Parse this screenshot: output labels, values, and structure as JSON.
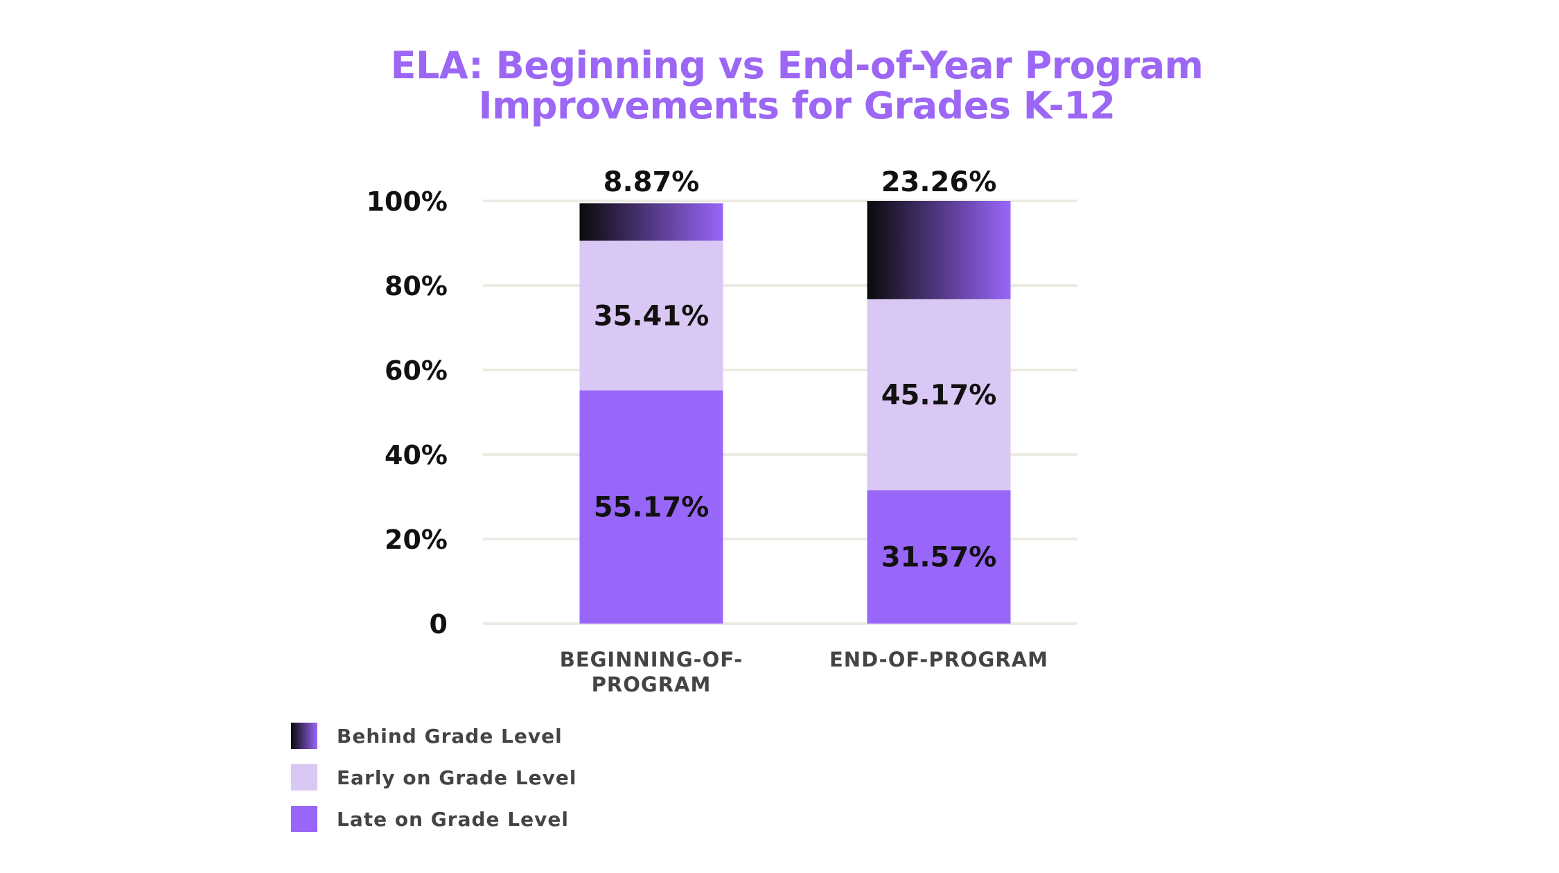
{
  "chart_data": {
    "type": "bar",
    "stacked": true,
    "title_lines": [
      "ELA: Beginning vs End-of-Year Program",
      "Improvements for Grades K-12"
    ],
    "categories": [
      [
        "BEGINNING-OF-",
        "PROGRAM"
      ],
      [
        "END-OF-PROGRAM"
      ]
    ],
    "y_ticks": [
      "0",
      "20%",
      "40%",
      "60%",
      "80%",
      "100%"
    ],
    "ylim": [
      0,
      100
    ],
    "grid": true,
    "legend_position": "bottom-left",
    "series": [
      {
        "name": "Late on Grade Level",
        "values": [
          55.17,
          31.57
        ],
        "labels": [
          "55.17%",
          "31.57%"
        ],
        "color": "#9966fa"
      },
      {
        "name": "Early on Grade Level",
        "values": [
          35.41,
          45.17
        ],
        "labels": [
          "35.41%",
          "45.17%"
        ],
        "color": "#dac8f4"
      },
      {
        "name": "Behind Grade Level",
        "values": [
          8.87,
          23.26
        ],
        "labels": [
          "8.87%",
          "23.26%"
        ],
        "color": "#9966fa",
        "gradient_from": "#0a0a0a"
      }
    ]
  },
  "legend": {
    "items": [
      {
        "label": "Behind Grade Level",
        "series": "Behind Grade Level"
      },
      {
        "label": "Early on Grade Level",
        "series": "Early on Grade Level"
      },
      {
        "label": "Late on Grade Level",
        "series": "Late on Grade Level"
      }
    ]
  },
  "colors": {
    "title": "#9b67f4",
    "grid": "#ebebe3",
    "text": "#111111",
    "muted_text": "#444444"
  }
}
